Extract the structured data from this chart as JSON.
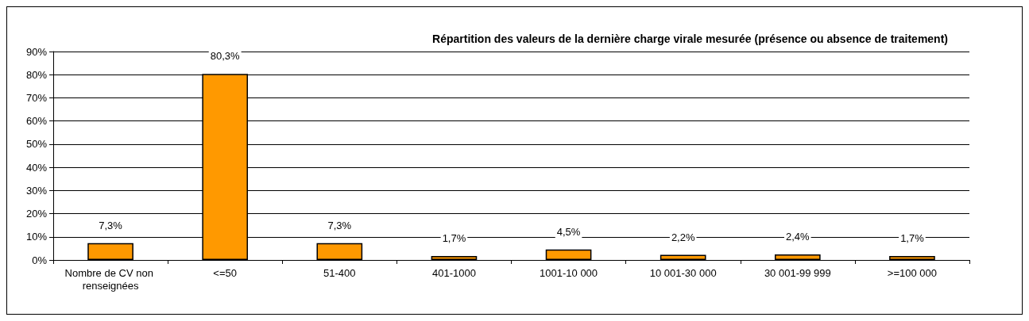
{
  "chart_data": {
    "type": "bar",
    "title": "Répartition des valeurs de la dernière charge virale mesurée (présence ou absence de traitement)",
    "categories": [
      "Nombre de CV non renseignées",
      "<=50",
      "51-400",
      "401-1000",
      "1001-10 000",
      "10 001-30 000",
      "30 001-99 999",
      ">=100 000"
    ],
    "values": [
      7.3,
      80.3,
      7.3,
      1.7,
      4.5,
      2.2,
      2.4,
      1.7
    ],
    "value_labels": [
      "7,3%",
      "80,3%",
      "7,3%",
      "1,7%",
      "4,5%",
      "2,2%",
      "2,4%",
      "1,7%"
    ],
    "color": "#ff9900",
    "ylim": [
      0,
      90
    ],
    "yticks": [
      {
        "value": 0,
        "label": "0%"
      },
      {
        "value": 10,
        "label": "10%"
      },
      {
        "value": 20,
        "label": "20%"
      },
      {
        "value": 30,
        "label": "30%"
      },
      {
        "value": 40,
        "label": "40%"
      },
      {
        "value": 50,
        "label": "50%"
      },
      {
        "value": 60,
        "label": "60%"
      },
      {
        "value": 70,
        "label": "70%"
      },
      {
        "value": 80,
        "label": "80%"
      },
      {
        "value": 90,
        "label": "90%"
      }
    ],
    "grid": "y"
  }
}
